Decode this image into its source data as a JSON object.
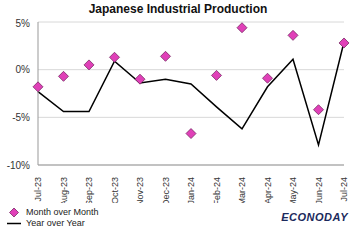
{
  "chart_data": {
    "type": "line",
    "title": "Japanese Industrial Production",
    "categories": [
      "Jul-23",
      "Aug-23",
      "Sep-23",
      "Oct-23",
      "Nov-23",
      "Dec-23",
      "Jan-24",
      "Feb-24",
      "Mar-24",
      "Apr-24",
      "May-24",
      "Jun-24",
      "Jul-24"
    ],
    "series": [
      {
        "name": "Month over Month",
        "type": "scatter",
        "marker": "diamond",
        "color": "#e040b8",
        "values": [
          -1.8,
          -0.7,
          0.5,
          1.3,
          -1.0,
          1.4,
          -6.7,
          -0.6,
          4.4,
          -0.9,
          3.6,
          -4.2,
          2.8
        ]
      },
      {
        "name": "Year over Year",
        "type": "line",
        "color": "#000000",
        "values": [
          -2.3,
          -4.4,
          -4.4,
          0.9,
          -1.4,
          -1.0,
          -1.5,
          -3.9,
          -6.2,
          -1.8,
          1.1,
          -7.9,
          2.9
        ]
      }
    ],
    "ylim": [
      -10,
      5
    ],
    "yticks": [
      {
        "value": -10,
        "label": "-10%"
      },
      {
        "value": -5,
        "label": "-5%"
      },
      {
        "value": 0,
        "label": "0%"
      },
      {
        "value": 5,
        "label": "5%"
      }
    ],
    "grid": true,
    "legend": "bottom-left",
    "annotations": [
      "ECONODAY"
    ]
  }
}
